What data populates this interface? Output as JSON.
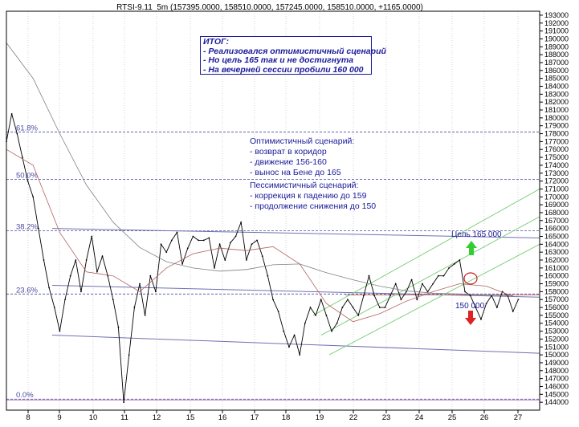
{
  "title": "RTSI-9.11_5m (157395.0000, 158510.0000, 157245.0000, 158510.0000, +1165.0000)",
  "summary": {
    "lines": [
      "ИТОГ:",
      "- Реализовался оптимистичный сценарий",
      "- Но цель 165 так и не достигнута",
      "- На вечерней сессии пробили 160 000"
    ]
  },
  "optimistic": {
    "lines": [
      "Оптимистичный сценарий:",
      "- возврат в коридор",
      "- движение 156-160",
      "- вынос на Бене до 165"
    ]
  },
  "pessimistic": {
    "lines": [
      "Пессимистичный сценарий:",
      "- коррекция к падению до 159",
      "- продолжение снижения до 150"
    ]
  },
  "annotations": {
    "target_up": "Цель 165 000",
    "target_down": "150 000"
  },
  "colors": {
    "price": "#000000",
    "ma_fast": "#b06060",
    "ma_slow": "#808080",
    "fib": "#4a4aa0",
    "channel": "#7fd07f",
    "trendline": "#7070b0",
    "annotation": "#1a1a9a",
    "arrow_up": "#33cc33",
    "arrow_down": "#dd2222",
    "circle": "#cc2222"
  },
  "chart_data": {
    "type": "line",
    "title": "RTSI-9.11_5m (157395.0000, 158510.0000, 157245.0000, 158510.0000, +1165.0000)",
    "xlabel": "",
    "ylabel": "",
    "ylim": [
      143000,
      193500
    ],
    "xlim": [
      7.5,
      27.5
    ],
    "grid": true,
    "x_ticks": [
      "8",
      "9",
      "10",
      "11",
      "12",
      "15",
      "16",
      "17",
      "18",
      "19",
      "22",
      "23",
      "24",
      "25",
      "26",
      "27"
    ],
    "y_ticks": [
      144000,
      145000,
      146000,
      147000,
      148000,
      149000,
      150000,
      151000,
      152000,
      153000,
      154000,
      155000,
      156000,
      157000,
      158000,
      159000,
      160000,
      161000,
      162000,
      163000,
      164000,
      165000,
      166000,
      167000,
      168000,
      169000,
      170000,
      171000,
      172000,
      173000,
      174000,
      175000,
      176000,
      177000,
      178000,
      179000,
      180000,
      181000,
      182000,
      183000,
      184000,
      185000,
      186000,
      187000,
      188000,
      189000,
      190000,
      191000,
      192000,
      193000
    ],
    "fib_levels": [
      {
        "label": "61.8%",
        "value": 178200
      },
      {
        "label": "50.0%",
        "value": 172200
      },
      {
        "label": "38.2%",
        "value": 165700
      },
      {
        "label": "23.6%",
        "value": 157700
      },
      {
        "label": "0.0%",
        "value": 144400
      }
    ],
    "series": [
      {
        "name": "",
        "x": [
          7.5,
          7.7,
          7.9,
          8.1,
          8.3,
          8.5,
          8.7,
          8.9,
          9.1,
          9.3,
          9.5,
          9.7,
          9.9,
          10.1,
          10.3,
          10.5,
          10.7,
          10.9,
          11.1,
          11.3,
          11.5,
          11.7,
          11.9,
          12.1,
          12.3,
          12.5,
          12.7,
          12.9,
          13.1,
          13.3,
          13.5,
          13.7,
          13.9,
          14.1,
          14.3,
          14.5,
          14.7,
          14.9,
          15.1,
          15.3,
          15.5,
          15.7,
          15.9,
          16.1,
          16.3,
          16.5,
          16.7,
          16.9,
          17.1,
          17.3,
          17.5,
          17.7,
          17.9,
          18.1,
          18.3,
          18.5,
          18.7,
          18.9,
          19.1,
          19.3,
          19.5,
          19.7,
          19.9,
          20.1,
          20.3,
          20.5,
          20.7,
          20.9,
          21.1,
          21.3,
          21.5,
          21.7,
          21.9,
          22.1,
          22.3,
          22.5,
          22.7,
          22.9,
          23.1,
          23.3,
          23.5,
          23.7,
          23.9,
          24.1,
          24.3,
          24.5,
          24.7,
          24.9,
          25.1,
          25.3,
          25.5,
          25.7,
          25.9,
          26.1,
          26.3,
          26.5,
          26.7
        ],
        "values": [
          177000,
          180500,
          178000,
          175000,
          172000,
          170000,
          166000,
          162000,
          158500,
          156000,
          153000,
          157000,
          160000,
          162000,
          158000,
          162000,
          165000,
          160500,
          162500,
          160000,
          157000,
          153500,
          144000,
          150000,
          156000,
          159000,
          155000,
          160000,
          158000,
          164000,
          163000,
          164500,
          165500,
          161500,
          163500,
          165000,
          164500,
          164500,
          164800,
          161000,
          164000,
          162000,
          164200,
          165000,
          166800,
          162000,
          164000,
          164500,
          162500,
          160000,
          157000,
          155500,
          153000,
          151000,
          152500,
          150000,
          154000,
          156000,
          155000,
          157000,
          155000,
          153000,
          154000,
          156000,
          157000,
          156000,
          155000,
          157500,
          160000,
          157500,
          156000,
          156000,
          157500,
          159000,
          157000,
          158000,
          159500,
          157000,
          159000,
          158000,
          159000,
          160000,
          160000,
          161000,
          161500,
          162000,
          158000,
          157500,
          156000,
          154500,
          156500,
          157500,
          156000,
          158000,
          157500,
          155500,
          157000
        ]
      },
      {
        "name": "",
        "x": [
          7.5,
          8.5,
          9.5,
          10.5,
          11.5,
          12.5,
          13.5,
          14.5,
          15.5,
          16.5,
          17.5,
          18.5,
          19.5,
          20.5,
          21.5,
          22.5,
          23.5,
          24.5,
          25.5,
          26.5
        ],
        "values": [
          176000,
          174000,
          165500,
          160500,
          160000,
          158000,
          161000,
          162800,
          163500,
          163200,
          163700,
          161500,
          156500,
          154200,
          155200,
          156800,
          158000,
          159000,
          158700,
          157400
        ]
      },
      {
        "name": "",
        "x": [
          7.5,
          8.5,
          9.5,
          10.5,
          11.5,
          12.5,
          13.5,
          14.5,
          15.5,
          16.5,
          17.5,
          18.5,
          19.5,
          20.5,
          21.5,
          22.5,
          23.5,
          24.5,
          25.5,
          26.5
        ],
        "values": [
          189500,
          185000,
          178000,
          171500,
          166800,
          163600,
          161800,
          161000,
          160600,
          160800,
          161400,
          161500,
          160400,
          159500,
          158700,
          158100,
          157800,
          157700,
          157600,
          157500
        ]
      }
    ],
    "annotations": [
      "Цель 165 000",
      "150 000"
    ]
  }
}
